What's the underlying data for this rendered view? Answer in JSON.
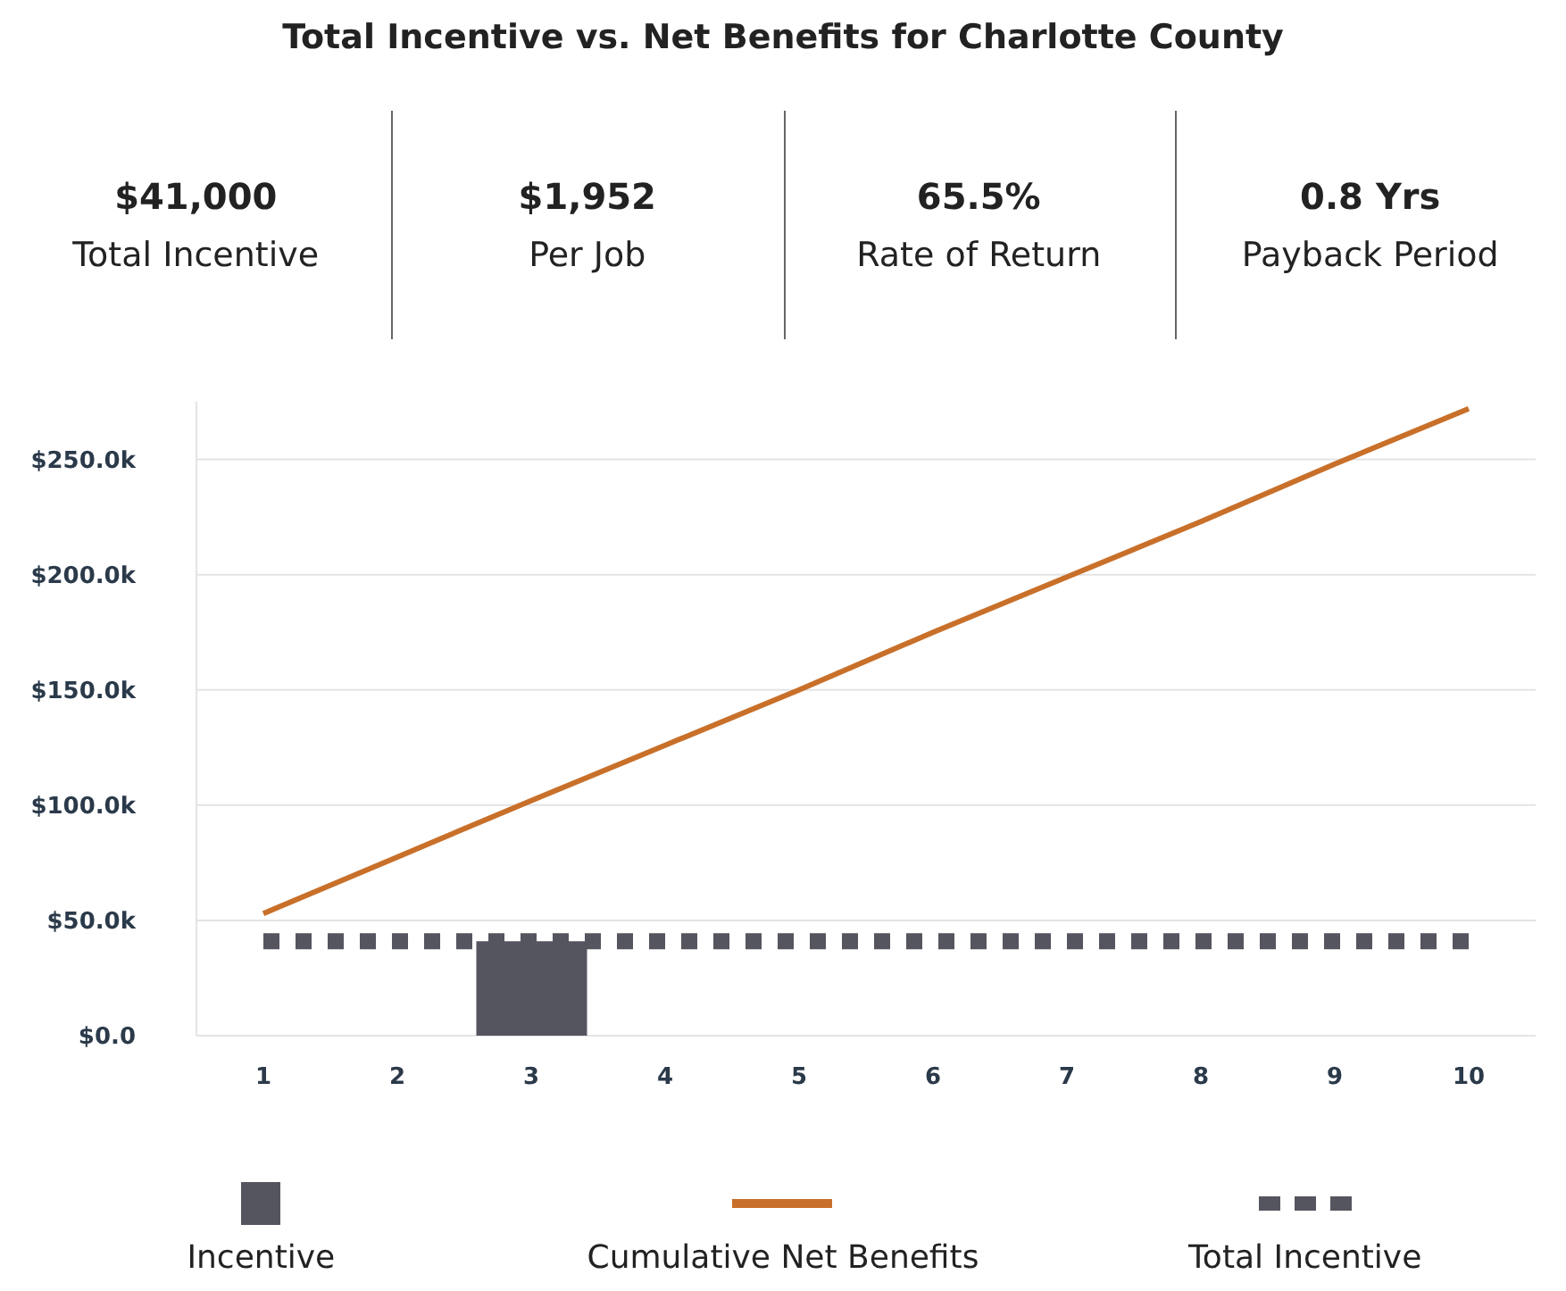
{
  "chart_data": {
    "type": "line",
    "title": "Total Incentive vs. Net Benefits for Charlotte County",
    "annotations": [
      "$41,000",
      "Total Incentive",
      "$1,952",
      "Per Job",
      "65.5%",
      "Rate of Return",
      "0.8 Yrs",
      "Payback Period"
    ],
    "categories": [
      "1",
      "2",
      "3",
      "4",
      "5",
      "6",
      "7",
      "8",
      "9",
      "10"
    ],
    "series": [
      {
        "name": "Incentive",
        "type": "bar",
        "color": "#55555f",
        "values": [
          null,
          null,
          41000,
          null,
          null,
          null,
          null,
          null,
          null,
          null
        ]
      },
      {
        "name": "Cumulative Net Benefits",
        "color": "#c8702a",
        "line_style": "solid",
        "values": [
          53000,
          77500,
          102000,
          126000,
          150000,
          175000,
          199000,
          223000,
          248000,
          272000
        ]
      },
      {
        "name": "Total Incentive",
        "type": "line",
        "color": "#55555f",
        "line_style": "dashed",
        "values": [
          41000,
          41000,
          41000,
          41000,
          41000,
          41000,
          41000,
          41000,
          41000,
          41000
        ]
      }
    ],
    "ylim": [
      0,
      275000
    ],
    "yticks": [
      {
        "value": 0,
        "label": "$0.0"
      },
      {
        "value": 50000,
        "label": "$50.0k"
      },
      {
        "value": 100000,
        "label": "$100.0k"
      },
      {
        "value": 150000,
        "label": "$150.0k"
      },
      {
        "value": 200000,
        "label": "$200.0k"
      },
      {
        "value": 250000,
        "label": "$250.0k"
      }
    ],
    "grid": "y",
    "legend": "bottom",
    "marker": "none"
  }
}
